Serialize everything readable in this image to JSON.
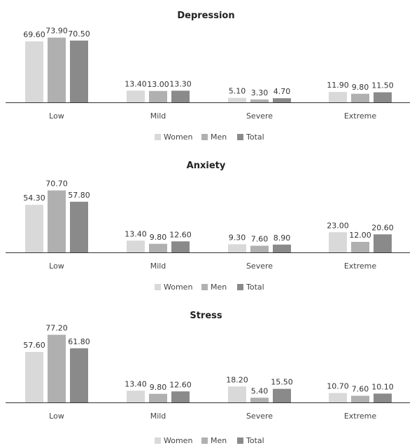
{
  "chart_data": [
    {
      "type": "bar",
      "title": "Depression",
      "categories": [
        "Low",
        "Mild",
        "Severe",
        "Extreme"
      ],
      "series": [
        {
          "name": "Women",
          "values": [
            69.6,
            13.4,
            5.1,
            11.9
          ]
        },
        {
          "name": "Men",
          "values": [
            73.9,
            13.0,
            3.3,
            9.8
          ]
        },
        {
          "name": "Total",
          "values": [
            70.5,
            13.3,
            4.7,
            11.5
          ]
        }
      ],
      "value_labels": [
        [
          "69.60",
          "13.40",
          "5.10",
          "11.90"
        ],
        [
          "73.90",
          "13.00",
          "3.30",
          "9.80"
        ],
        [
          "70.50",
          "13.30",
          "4.70",
          "11.50"
        ]
      ],
      "ylim": [
        0,
        80
      ],
      "grid": false,
      "legend_position": "bottom"
    },
    {
      "type": "bar",
      "title": "Anxiety",
      "categories": [
        "Low",
        "Mild",
        "Severe",
        "Extreme"
      ],
      "series": [
        {
          "name": "Women",
          "values": [
            54.3,
            13.4,
            9.3,
            23.0
          ]
        },
        {
          "name": "Men",
          "values": [
            70.7,
            9.8,
            7.6,
            12.0
          ]
        },
        {
          "name": "Total",
          "values": [
            57.8,
            12.6,
            8.9,
            20.6
          ]
        }
      ],
      "value_labels": [
        [
          "54.30",
          "13.40",
          "9.30",
          "23.00"
        ],
        [
          "70.70",
          "9.80",
          "7.60",
          "12.00"
        ],
        [
          "57.80",
          "12.60",
          "8.90",
          "20.60"
        ]
      ],
      "ylim": [
        0,
        80
      ],
      "grid": false,
      "legend_position": "bottom"
    },
    {
      "type": "bar",
      "title": "Stress",
      "categories": [
        "Low",
        "Mild",
        "Severe",
        "Extreme"
      ],
      "series": [
        {
          "name": "Women",
          "values": [
            57.6,
            13.4,
            18.2,
            10.7
          ]
        },
        {
          "name": "Men",
          "values": [
            77.2,
            9.8,
            5.4,
            7.6
          ]
        },
        {
          "name": "Total",
          "values": [
            61.8,
            12.6,
            15.5,
            10.1
          ]
        }
      ],
      "value_labels": [
        [
          "57.60",
          "13.40",
          "18.20",
          "10.70"
        ],
        [
          "77.20",
          "9.80",
          "5.40",
          "7.60"
        ],
        [
          "61.80",
          "12.60",
          "15.50",
          "10.10"
        ]
      ],
      "ylim": [
        0,
        80
      ],
      "grid": false,
      "legend_position": "bottom"
    }
  ],
  "colors": {
    "Women": "#d9d9d9",
    "Men": "#b0b0b0",
    "Total": "#8a8a8a",
    "axis": "#333333"
  }
}
